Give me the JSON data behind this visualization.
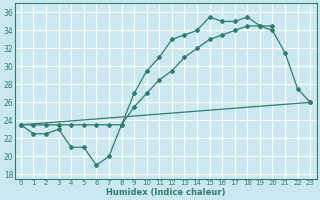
{
  "xlabel": "Humidex (Indice chaleur)",
  "bg_color": "#cbe8f0",
  "grid_color": "#ffffff",
  "line_color": "#2e7d6e",
  "xlim": [
    -0.5,
    23.5
  ],
  "ylim": [
    17.5,
    37.0
  ],
  "xticks": [
    0,
    1,
    2,
    3,
    4,
    5,
    6,
    7,
    8,
    9,
    10,
    11,
    12,
    13,
    14,
    15,
    16,
    17,
    18,
    19,
    20,
    21,
    22,
    23
  ],
  "yticks": [
    18,
    20,
    22,
    24,
    26,
    28,
    30,
    32,
    34,
    36
  ],
  "line1_x": [
    0,
    1,
    2,
    3,
    4,
    5,
    6,
    7,
    8,
    9,
    10,
    11,
    12,
    13,
    14,
    15,
    16,
    17,
    18,
    19,
    20,
    21,
    22,
    23
  ],
  "line1_y": [
    23.5,
    22.5,
    22.5,
    23.0,
    21.0,
    21.0,
    19.0,
    20.0,
    23.5,
    27.0,
    29.5,
    31.0,
    33.0,
    33.5,
    34.0,
    35.5,
    35.0,
    35.0,
    35.5,
    34.5,
    34.0,
    31.5,
    27.5,
    26.0
  ],
  "line2_x": [
    0,
    1,
    2,
    3,
    4,
    5,
    6,
    7,
    8,
    9,
    10,
    11,
    12,
    13,
    14,
    15,
    16,
    17,
    18,
    19,
    20
  ],
  "line2_y": [
    23.5,
    23.5,
    23.5,
    23.5,
    23.5,
    23.5,
    23.5,
    23.5,
    23.5,
    25.5,
    27.0,
    28.5,
    29.5,
    31.0,
    32.0,
    33.0,
    33.5,
    34.0,
    34.5,
    34.5,
    34.5
  ],
  "line3_x": [
    0,
    23
  ],
  "line3_y": [
    23.5,
    26.0
  ]
}
